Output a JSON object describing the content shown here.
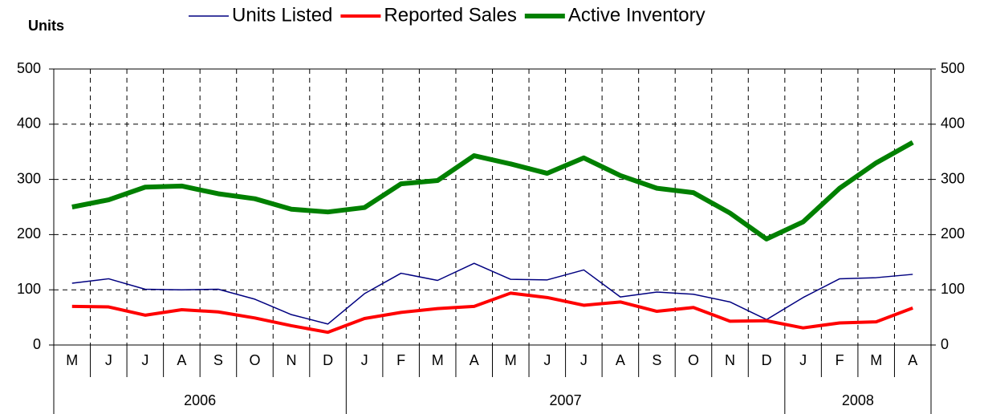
{
  "chart_data": {
    "type": "line",
    "y_label": "Units",
    "categories": [
      "M",
      "J",
      "J",
      "A",
      "S",
      "O",
      "N",
      "D",
      "J",
      "F",
      "M",
      "A",
      "M",
      "J",
      "J",
      "A",
      "S",
      "O",
      "N",
      "D",
      "J",
      "F",
      "M",
      "A"
    ],
    "year_labels": [
      "2006",
      "2007",
      "2008"
    ],
    "year_spans": [
      8,
      12,
      4
    ],
    "series": [
      {
        "name": "Units Listed",
        "color": "#000080",
        "line_width": 1.5,
        "values": [
          112,
          120,
          101,
          100,
          101,
          83,
          55,
          38,
          93,
          130,
          117,
          148,
          119,
          118,
          136,
          87,
          96,
          92,
          78,
          46,
          86,
          120,
          122,
          128
        ]
      },
      {
        "name": "Reported Sales",
        "color": "#ff0000",
        "line_width": 4,
        "values": [
          70,
          69,
          54,
          64,
          60,
          49,
          35,
          23,
          48,
          59,
          66,
          70,
          94,
          86,
          72,
          78,
          61,
          68,
          43,
          44,
          31,
          40,
          42,
          67
        ]
      },
      {
        "name": "Active Inventory",
        "color": "#008000",
        "line_width": 6,
        "values": [
          250,
          263,
          286,
          288,
          274,
          265,
          246,
          241,
          249,
          292,
          298,
          343,
          328,
          311,
          339,
          307,
          284,
          276,
          239,
          192,
          223,
          284,
          330,
          367
        ]
      }
    ],
    "ylim": [
      0,
      500
    ],
    "yticks": [
      0,
      100,
      200,
      300,
      400,
      500
    ],
    "grid": true
  }
}
